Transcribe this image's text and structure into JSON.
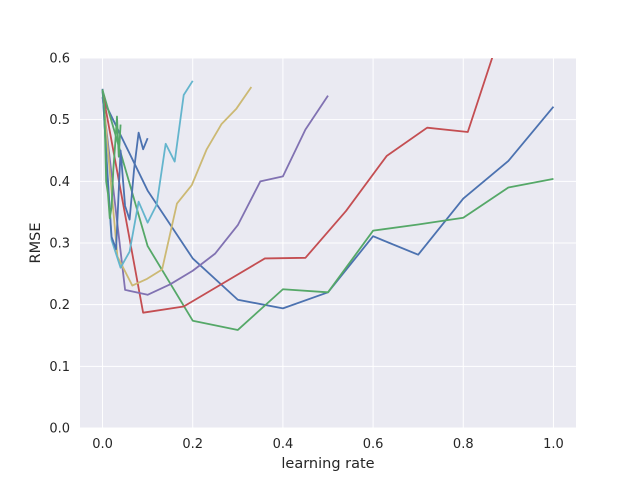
{
  "chart_data": {
    "type": "line",
    "title": "",
    "xlabel": "learning rate",
    "ylabel": "RMSE",
    "xlim": [
      -0.05,
      1.05
    ],
    "ylim": [
      0.0,
      0.6
    ],
    "xticks": [
      0.0,
      0.2,
      0.4,
      0.6,
      0.8,
      1.0
    ],
    "xtick_labels": [
      "0.0",
      "0.2",
      "0.4",
      "0.6",
      "0.8",
      "1.0"
    ],
    "yticks": [
      0.0,
      0.1,
      0.2,
      0.3,
      0.4,
      0.5,
      0.6
    ],
    "ytick_labels": [
      "0.0",
      "0.1",
      "0.2",
      "0.3",
      "0.4",
      "0.5",
      "0.6"
    ],
    "grid": true,
    "background": "#eaeaf2",
    "series": [
      {
        "color": "#4c72b0",
        "x": [
          0.0,
          0.1,
          0.2,
          0.3,
          0.4,
          0.5,
          0.6,
          0.7,
          0.8,
          0.9,
          1.0
        ],
        "y": [
          0.535,
          0.385,
          0.275,
          0.208,
          0.194,
          0.22,
          0.311,
          0.281,
          0.372,
          0.433,
          0.521
        ]
      },
      {
        "color": "#55a868",
        "x": [
          0.0,
          0.1,
          0.2,
          0.3,
          0.4,
          0.5,
          0.6,
          0.7,
          0.8,
          0.9,
          1.0
        ],
        "y": [
          0.548,
          0.295,
          0.174,
          0.159,
          0.225,
          0.22,
          0.32,
          0.33,
          0.341,
          0.39,
          0.404
        ]
      },
      {
        "color": "#c44e52",
        "x": [
          0.0,
          0.09,
          0.18,
          0.27,
          0.36,
          0.45,
          0.54,
          0.63,
          0.72,
          0.81,
          0.9
        ],
        "y": [
          0.545,
          0.187,
          0.197,
          0.236,
          0.275,
          0.276,
          0.352,
          0.441,
          0.487,
          0.48,
          0.68
        ]
      },
      {
        "color": "#8172b2",
        "x": [
          0.0,
          0.05,
          0.1,
          0.15,
          0.2,
          0.25,
          0.3,
          0.35,
          0.4,
          0.45,
          0.5
        ],
        "y": [
          0.537,
          0.224,
          0.216,
          0.233,
          0.255,
          0.283,
          0.329,
          0.4,
          0.408,
          0.484,
          0.539
        ]
      },
      {
        "color": "#ccb974",
        "x": [
          0.0,
          0.033,
          0.066,
          0.099,
          0.132,
          0.165,
          0.198,
          0.231,
          0.264,
          0.297,
          0.33
        ],
        "y": [
          0.548,
          0.278,
          0.231,
          0.242,
          0.257,
          0.364,
          0.394,
          0.452,
          0.493,
          0.518,
          0.553
        ]
      },
      {
        "color": "#64b5cd",
        "x": [
          0.0,
          0.02,
          0.04,
          0.06,
          0.08,
          0.1,
          0.12,
          0.14,
          0.16,
          0.18,
          0.2
        ],
        "y": [
          0.548,
          0.305,
          0.26,
          0.286,
          0.367,
          0.333,
          0.362,
          0.461,
          0.432,
          0.54,
          0.563
        ]
      },
      {
        "color": "#4c72b0",
        "x": [
          0.0,
          0.01,
          0.02,
          0.03,
          0.04,
          0.05,
          0.06,
          0.07,
          0.08,
          0.09,
          0.1
        ],
        "y": [
          0.55,
          0.42,
          0.31,
          0.29,
          0.45,
          0.36,
          0.338,
          0.42,
          0.479,
          0.452,
          0.47
        ]
      },
      {
        "color": "#55a868",
        "x": [
          0.0,
          0.004,
          0.008,
          0.012,
          0.016,
          0.02,
          0.024,
          0.028,
          0.032,
          0.036,
          0.04
        ],
        "y": [
          0.549,
          0.52,
          0.4,
          0.38,
          0.34,
          0.358,
          0.42,
          0.46,
          0.505,
          0.44,
          0.492
        ]
      }
    ]
  }
}
